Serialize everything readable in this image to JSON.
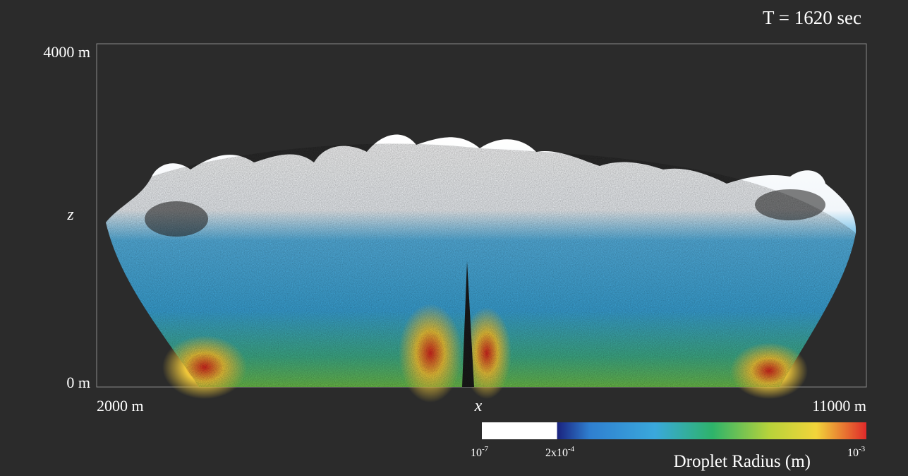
{
  "time_label": "T = 1620 sec",
  "axes": {
    "z_label": "z",
    "x_label": "x",
    "z_ticks": [
      "4000 m",
      "0 m"
    ],
    "x_ticks": [
      "2000 m",
      "11000 m"
    ]
  },
  "colorbar": {
    "title": "Droplet Radius (m)",
    "ticks": [
      {
        "base": "10",
        "exp": "-7"
      },
      {
        "base": "2x10",
        "exp": "-4"
      },
      {
        "base": "10",
        "exp": "-3"
      }
    ]
  }
}
